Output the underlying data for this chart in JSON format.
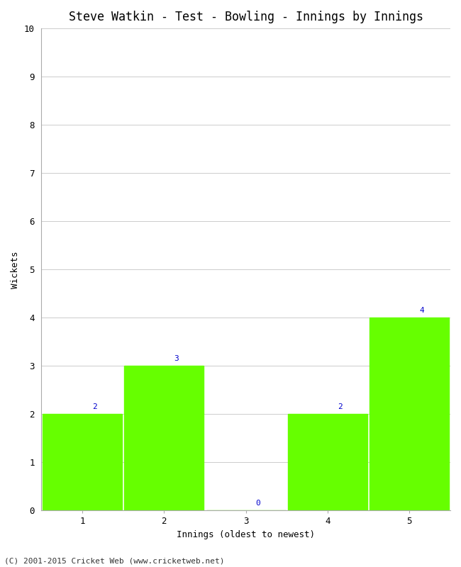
{
  "title": "Steve Watkin - Test - Bowling - Innings by Innings",
  "xlabel": "Innings (oldest to newest)",
  "ylabel": "Wickets",
  "categories": [
    1,
    2,
    3,
    4,
    5
  ],
  "values": [
    2,
    3,
    0,
    2,
    4
  ],
  "bar_color": "#66ff00",
  "bar_edge_color": "#66ff00",
  "ylim": [
    0,
    10
  ],
  "yticks": [
    0,
    1,
    2,
    3,
    4,
    5,
    6,
    7,
    8,
    9,
    10
  ],
  "label_color": "#0000cc",
  "label_fontsize": 8,
  "axis_label_fontsize": 9,
  "title_fontsize": 12,
  "tick_fontsize": 9,
  "background_color": "#ffffff",
  "footer": "(C) 2001-2015 Cricket Web (www.cricketweb.net)",
  "footer_fontsize": 8,
  "bar_width": 0.97,
  "xlim": [
    0.5,
    5.5
  ]
}
